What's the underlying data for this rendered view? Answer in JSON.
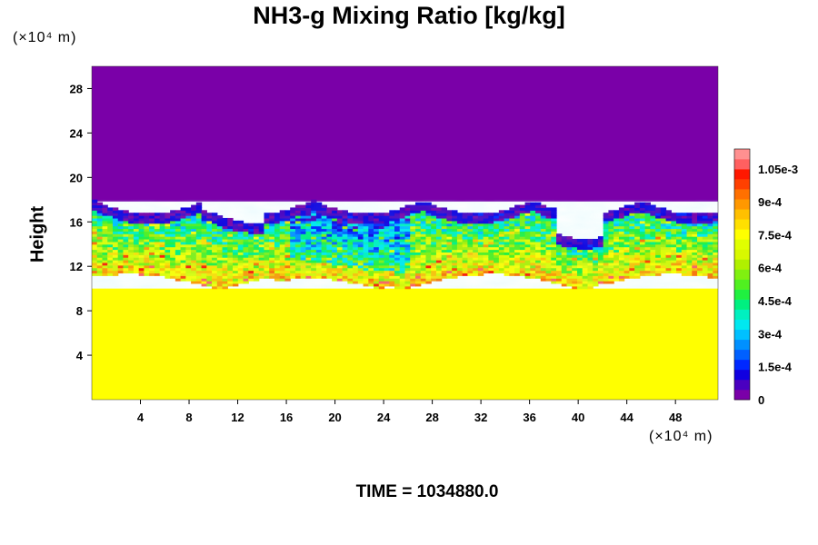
{
  "title": "NH3-g Mixing Ratio [kg/kg]",
  "y_unit": "(×10⁴ m)",
  "x_unit": "(×10⁴ m)",
  "time_label": "TIME =",
  "time_value": "1034880.0",
  "chart_data": {
    "type": "heatmap",
    "title": "NH3-g Mixing Ratio [kg/kg]",
    "xlabel": "",
    "ylabel": "Height",
    "x_unit": "(×10⁴ m)",
    "y_unit": "(×10⁴ m)",
    "xlim": [
      0,
      51.5
    ],
    "ylim": [
      0,
      30
    ],
    "x_ticks": [
      4,
      8,
      12,
      16,
      20,
      24,
      28,
      32,
      36,
      40,
      44,
      48
    ],
    "y_ticks": [
      4,
      8,
      12,
      16,
      20,
      24,
      28
    ],
    "colorbar": {
      "min": 0,
      "max": 0.00114,
      "tick_values": [
        0,
        0.00015,
        0.0003,
        0.00045,
        0.0006,
        0.00075,
        0.0009,
        0.00105
      ],
      "tick_labels": [
        "0",
        "1.5e-4",
        "3e-4",
        "4.5e-4",
        "6e-4",
        "7.5e-4",
        "9e-4",
        "1.05e-3"
      ],
      "colors": [
        "#7a00a8",
        "#4a00c0",
        "#1000e0",
        "#0028ff",
        "#0060ff",
        "#0090ff",
        "#00c0ff",
        "#00e8f0",
        "#00f0c0",
        "#00f080",
        "#20f040",
        "#50f020",
        "#80f010",
        "#b0f000",
        "#d8f800",
        "#e0ff00",
        "#ffff00",
        "#ffe000",
        "#ffc000",
        "#ff9800",
        "#ff7000",
        "#ff4000",
        "#ff1800",
        "#ff6060",
        "#ff9090"
      ]
    },
    "regions": [
      {
        "feature": "upper layer",
        "height_range": [
          18,
          30
        ],
        "value": 0
      },
      {
        "feature": "turbulent mixing layer",
        "height_range": [
          10,
          18
        ],
        "value_range": [
          0,
          0.00105
        ]
      },
      {
        "feature": "lower layer",
        "height_range": [
          0,
          10
        ],
        "value": 0.00077
      }
    ]
  }
}
